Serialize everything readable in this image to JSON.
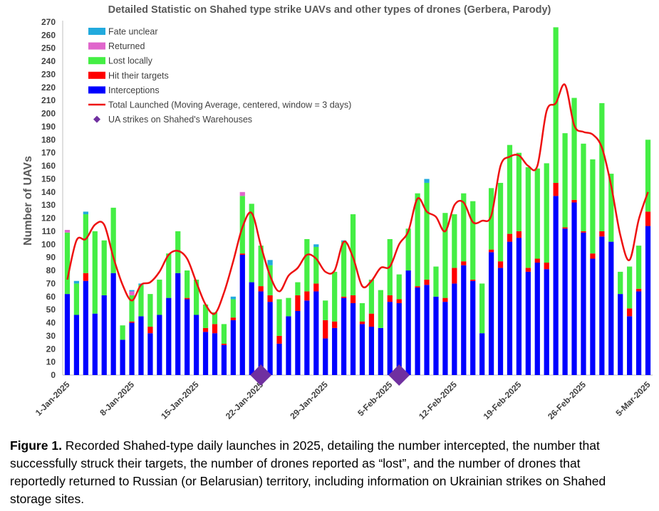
{
  "chart_data": {
    "type": "bar",
    "stacked": true,
    "title": "Detailed Statistic on Shahed type strike UAVs and other types of drones (Gerbera, Parody)",
    "xlabel": "",
    "ylabel": "Number of UAVs",
    "ylim": [
      0,
      270
    ],
    "ytick_step": 10,
    "grid": false,
    "legend_position": "top-left",
    "dates": [
      "1-Jan-2025",
      "2-Jan-2025",
      "3-Jan-2025",
      "4-Jan-2025",
      "5-Jan-2025",
      "6-Jan-2025",
      "7-Jan-2025",
      "8-Jan-2025",
      "9-Jan-2025",
      "10-Jan-2025",
      "11-Jan-2025",
      "12-Jan-2025",
      "13-Jan-2025",
      "14-Jan-2025",
      "15-Jan-2025",
      "16-Jan-2025",
      "17-Jan-2025",
      "18-Jan-2025",
      "19-Jan-2025",
      "20-Jan-2025",
      "21-Jan-2025",
      "22-Jan-2025",
      "23-Jan-2025",
      "24-Jan-2025",
      "25-Jan-2025",
      "26-Jan-2025",
      "27-Jan-2025",
      "28-Jan-2025",
      "29-Jan-2025",
      "30-Jan-2025",
      "31-Jan-2025",
      "1-Feb-2025",
      "2-Feb-2025",
      "3-Feb-2025",
      "4-Feb-2025",
      "5-Feb-2025",
      "6-Feb-2025",
      "7-Feb-2025",
      "8-Feb-2025",
      "9-Feb-2025",
      "10-Feb-2025",
      "11-Feb-2025",
      "12-Feb-2025",
      "13-Feb-2025",
      "14-Feb-2025",
      "15-Feb-2025",
      "16-Feb-2025",
      "17-Feb-2025",
      "18-Feb-2025",
      "19-Feb-2025",
      "20-Feb-2025",
      "21-Feb-2025",
      "22-Feb-2025",
      "23-Feb-2025",
      "24-Feb-2025",
      "25-Feb-2025",
      "26-Feb-2025",
      "27-Feb-2025",
      "28-Feb-2025",
      "1-Mar-2025",
      "2-Mar-2025",
      "3-Mar-2025",
      "4-Mar-2025",
      "5-Mar-2025"
    ],
    "xtick_labels": [
      "1-Jan-2025",
      "8-Jan-2025",
      "15-Jan-2025",
      "22-Jan-2025",
      "29-Jan-2025",
      "5-Feb-2025",
      "12-Feb-2025",
      "19-Feb-2025",
      "26-Feb-2025",
      "5-Mar-2025"
    ],
    "series": [
      {
        "name": "Interceptions",
        "color": "#0000ff",
        "values": [
          62,
          46,
          72,
          47,
          61,
          78,
          27,
          40,
          45,
          32,
          46,
          59,
          78,
          58,
          46,
          33,
          32,
          23,
          42,
          92,
          71,
          64,
          56,
          24,
          45,
          49,
          57,
          64,
          28,
          36,
          59,
          55,
          39,
          37,
          36,
          56,
          55,
          80,
          67,
          69,
          60,
          56,
          70,
          84,
          72,
          32,
          94,
          82,
          102,
          105,
          79,
          86,
          81,
          137,
          112,
          132,
          109,
          89,
          106,
          102,
          62,
          45,
          64,
          114
        ]
      },
      {
        "name": "Hit their targets",
        "color": "#ff0000",
        "values": [
          0,
          0,
          6,
          0,
          0,
          0,
          0,
          1,
          0,
          5,
          0,
          0,
          0,
          1,
          0,
          3,
          7,
          1,
          2,
          1,
          0,
          4,
          5,
          6,
          0,
          12,
          7,
          6,
          14,
          5,
          1,
          6,
          2,
          10,
          0,
          5,
          3,
          0,
          1,
          4,
          0,
          3,
          12,
          3,
          1,
          0,
          2,
          5,
          6,
          5,
          3,
          3,
          5,
          10,
          1,
          2,
          1,
          4,
          4,
          0,
          0,
          6,
          2,
          11
        ]
      },
      {
        "name": "Lost locally",
        "color": "#44ee44",
        "values": [
          47,
          24,
          45,
          63,
          42,
          50,
          11,
          20,
          24,
          25,
          27,
          34,
          32,
          21,
          27,
          18,
          9,
          15,
          14,
          44,
          60,
          31,
          23,
          28,
          14,
          10,
          40,
          28,
          15,
          38,
          42,
          62,
          14,
          26,
          29,
          43,
          19,
          32,
          71,
          74,
          23,
          65,
          41,
          52,
          60,
          38,
          47,
          60,
          68,
          60,
          77,
          69,
          76,
          119,
          72,
          78,
          67,
          72,
          98,
          52,
          17,
          32,
          33,
          55
        ]
      },
      {
        "name": "Returned",
        "color": "#e066cc",
        "values": [
          2,
          0,
          0,
          0,
          0,
          0,
          0,
          3,
          0,
          0,
          0,
          0,
          0,
          0,
          0,
          0,
          0,
          0,
          0,
          3,
          0,
          0,
          0,
          0,
          0,
          0,
          0,
          0,
          0,
          0,
          0,
          0,
          0,
          0,
          0,
          0,
          0,
          0,
          0,
          0,
          0,
          0,
          0,
          0,
          0,
          0,
          0,
          0,
          0,
          0,
          0,
          0,
          0,
          0,
          0,
          0,
          0,
          0,
          0,
          0,
          0,
          0,
          0,
          0
        ]
      },
      {
        "name": "Fate unclear",
        "color": "#22aadd",
        "values": [
          0,
          2,
          2,
          0,
          0,
          0,
          0,
          1,
          1,
          0,
          0,
          0,
          0,
          0,
          0,
          0,
          0,
          0,
          2,
          0,
          0,
          0,
          4,
          0,
          0,
          0,
          0,
          2,
          0,
          0,
          1,
          0,
          0,
          0,
          0,
          0,
          0,
          0,
          0,
          3,
          0,
          0,
          0,
          0,
          0,
          0,
          0,
          0,
          0,
          0,
          0,
          0,
          0,
          0,
          0,
          0,
          0,
          0,
          0,
          0,
          0,
          0,
          0,
          0
        ]
      }
    ],
    "line_series": {
      "name": "Total Launched (Moving Average, centered, window = 3 days)",
      "color": "#ee1111",
      "values": [
        73,
        103,
        104,
        115,
        115,
        90,
        69,
        57,
        69,
        71,
        79,
        92,
        95,
        89,
        71,
        54,
        47,
        63,
        87,
        113,
        124,
        99,
        76,
        64,
        76,
        82,
        92,
        89,
        79,
        80,
        102,
        90,
        68,
        72,
        82,
        83,
        100,
        110,
        135,
        125,
        121,
        110,
        130,
        132,
        117,
        118,
        122,
        160,
        167,
        168,
        160,
        160,
        202,
        208,
        222,
        191,
        186,
        184,
        174,
        145,
        107,
        88,
        119,
        140
      ]
    },
    "marker_series": {
      "name": "UA strikes on Shahed's Warehouses",
      "color": "#7030a0",
      "dates": [
        "22-Jan-2025",
        "6-Feb-2025"
      ],
      "values": [
        0,
        0
      ]
    }
  },
  "caption": {
    "label": "Figure 1.",
    "text": " Recorded Shahed-type daily launches in 2025, detailing the number intercepted, the number that successfully struck their targets, the number of drones reported as “lost”, and the number of drones that reportedly returned to Russian (or Belarusian) territory, including information on Ukrainian strikes on Shahed storage sites."
  }
}
